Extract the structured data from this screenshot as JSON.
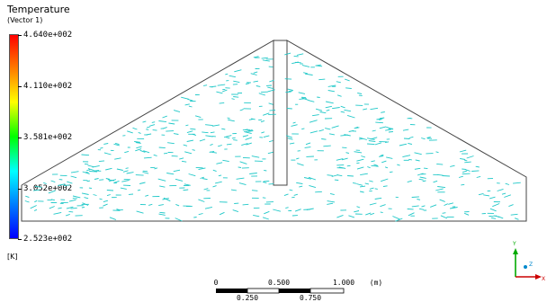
{
  "legend": {
    "title": "Temperature",
    "subtitle": "(Vector 1)",
    "unit": "[K]",
    "ticks": [
      "4.640e+002",
      "4.110e+002",
      "3.581e+002",
      "3.052e+002",
      "2.523e+002"
    ],
    "colors": [
      "#ff0000",
      "#ffff00",
      "#00ff00",
      "#00ffff",
      "#0000ff"
    ]
  },
  "scale_bar": {
    "top_labels": [
      "0",
      "0.500",
      "1.000"
    ],
    "bottom_labels": [
      "0.250",
      "0.750"
    ],
    "unit": "(m)"
  },
  "axes_triad": {
    "x_label": "X",
    "y_label": "Y",
    "z_label": "Z",
    "colors": {
      "x": "#cc0000",
      "y": "#00aa00",
      "z": "#0088cc"
    }
  },
  "vector_color": "#20c8c8"
}
